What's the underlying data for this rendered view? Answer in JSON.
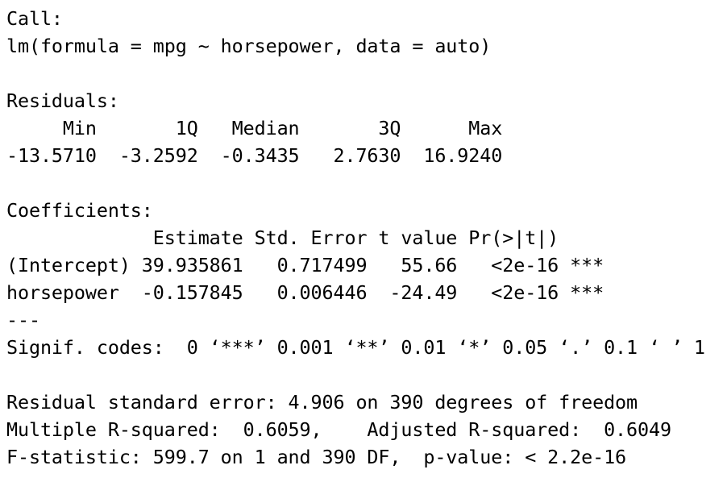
{
  "console": {
    "call_header": "Call:",
    "call": "lm(formula = mpg ~ horsepower, data = auto)",
    "residuals_header": "Residuals:",
    "residuals_labels": "     Min       1Q   Median       3Q      Max ",
    "residuals_values": "-13.5710  -3.2592  -0.3435   2.7630  16.9240 ",
    "coefficients_header": "Coefficients:",
    "coef_header": "             Estimate Std. Error t value Pr(>|t|)    ",
    "coef_intercept": "(Intercept) 39.935861   0.717499   55.66   <2e-16 ***",
    "coef_horsepower": "horsepower  -0.157845   0.006446  -24.49   <2e-16 ***",
    "separator": "---",
    "signif_codes": "Signif. codes:  0 ‘***’ 0.001 ‘**’ 0.01 ‘*’ 0.05 ‘.’ 0.1 ‘ ’ 1",
    "rse": "Residual standard error: 4.906 on 390 degrees of freedom",
    "r_squared": "Multiple R-squared:  0.6059,\tAdjusted R-squared:  0.6049 ",
    "f_statistic": "F-statistic: 599.7 on 1 and 390 DF,  p-value: < 2.2e-16"
  }
}
